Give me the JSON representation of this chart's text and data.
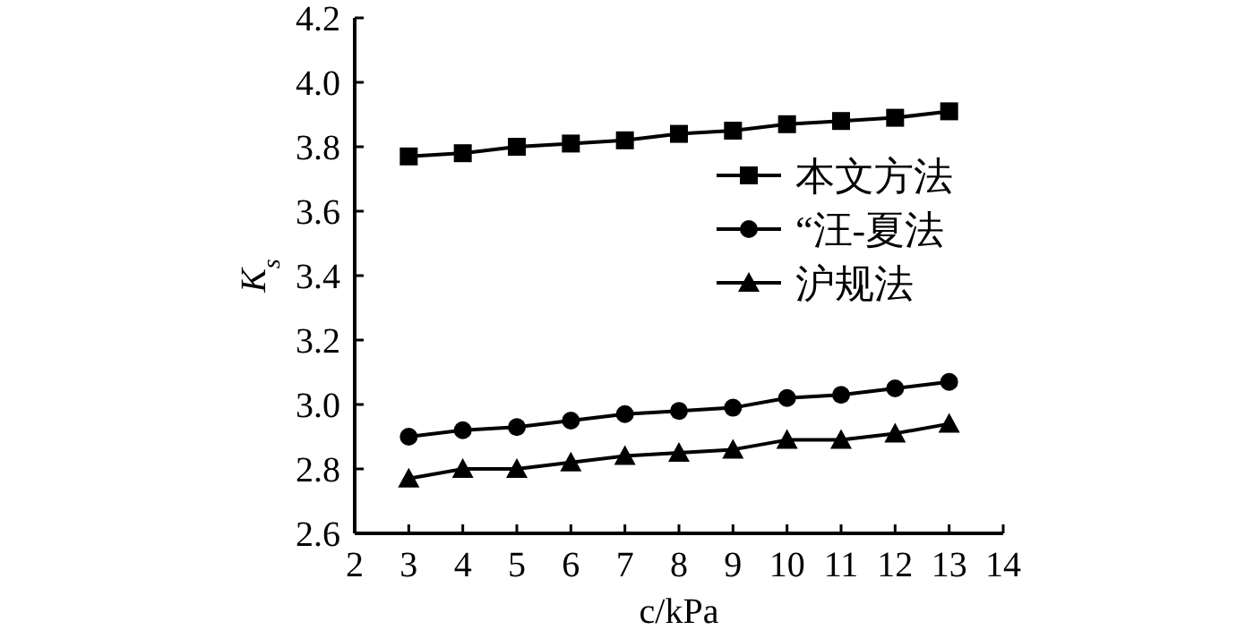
{
  "chart_data": {
    "type": "line",
    "xlabel": "c/kPa",
    "ylabel": "K$_{s}$",
    "x": [
      3,
      4,
      5,
      6,
      7,
      8,
      9,
      10,
      11,
      12,
      13
    ],
    "series": [
      {
        "name": "本文方法",
        "color": "#000000",
        "marker": "square",
        "values": [
          3.77,
          3.78,
          3.8,
          3.81,
          3.82,
          3.84,
          3.85,
          3.87,
          3.88,
          3.89,
          3.91
        ]
      },
      {
        "name": "“汪-夏法",
        "color": "#000000",
        "marker": "circle",
        "values": [
          2.9,
          2.92,
          2.93,
          2.95,
          2.97,
          2.98,
          2.99,
          3.02,
          3.03,
          3.05,
          3.07
        ]
      },
      {
        "name": "沪规法",
        "color": "#000000",
        "marker": "triangle",
        "values": [
          2.77,
          2.8,
          2.8,
          2.82,
          2.84,
          2.85,
          2.86,
          2.89,
          2.89,
          2.91,
          2.94
        ]
      }
    ],
    "xlim": [
      2,
      14
    ],
    "xticks": [
      2,
      3,
      4,
      5,
      6,
      7,
      8,
      9,
      10,
      11,
      12,
      13,
      14
    ],
    "ylim": [
      2.6,
      4.2
    ],
    "yticks": [
      {
        "value": 2.6,
        "label": "2.6"
      },
      {
        "value": 2.8,
        "label": "2.8"
      },
      {
        "value": 3.0,
        "label": "3.0"
      },
      {
        "value": 3.2,
        "label": "3.2"
      },
      {
        "value": 3.4,
        "label": "3.4"
      },
      {
        "value": 3.6,
        "label": "3.6"
      },
      {
        "value": 3.8,
        "label": "3.8"
      },
      {
        "value": 4.0,
        "label": "4.0"
      },
      {
        "value": 4.2,
        "label": "4.2"
      }
    ],
    "grid": false,
    "legend": "right",
    "line_style": "solid"
  }
}
